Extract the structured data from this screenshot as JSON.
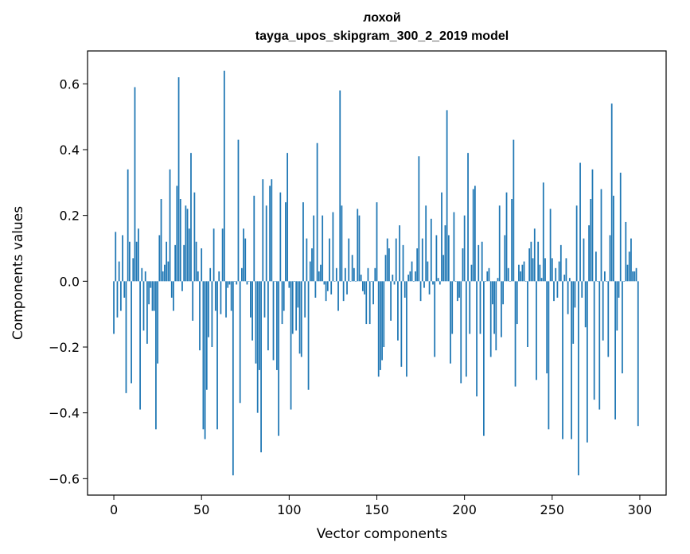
{
  "chart_data": {
    "type": "bar",
    "title": "лохой",
    "subtitle": "tayga_upos_skipgram_300_2_2019 model",
    "xlabel": "Vector components",
    "ylabel": "Components values",
    "xlim": [
      -15,
      315
    ],
    "ylim": [
      -0.65,
      0.7
    ],
    "xticks": [
      0,
      50,
      100,
      150,
      200,
      250,
      300
    ],
    "xtick_labels": [
      "0",
      "50",
      "100",
      "150",
      "200",
      "250",
      "300"
    ],
    "yticks": [
      -0.6,
      -0.4,
      -0.2,
      0.0,
      0.2,
      0.4,
      0.6
    ],
    "ytick_labels": [
      "−0.6",
      "−0.4",
      "−0.2",
      "0.0",
      "0.2",
      "0.4",
      "0.6"
    ],
    "grid": false,
    "bar_color": "#1f77b4",
    "x_start": 0,
    "values": [
      -0.16,
      0.15,
      -0.11,
      0.06,
      -0.09,
      0.14,
      -0.05,
      -0.34,
      0.34,
      0.12,
      -0.31,
      0.07,
      0.59,
      0.12,
      0.16,
      -0.39,
      0.04,
      -0.15,
      0.03,
      -0.19,
      -0.07,
      -0.02,
      -0.09,
      -0.09,
      -0.45,
      -0.25,
      0.14,
      0.25,
      0.03,
      0.05,
      0.12,
      0.06,
      0.34,
      -0.05,
      -0.09,
      0.11,
      0.29,
      0.62,
      0.25,
      -0.03,
      0.11,
      0.23,
      0.22,
      0.16,
      0.39,
      -0.12,
      0.27,
      0.12,
      0.03,
      -0.21,
      0.1,
      -0.45,
      -0.48,
      -0.33,
      -0.17,
      0.04,
      -0.2,
      0.16,
      -0.09,
      -0.45,
      0.03,
      -0.1,
      0.16,
      0.64,
      -0.11,
      -0.02,
      -0.01,
      -0.09,
      -0.59,
      0.0,
      -0.01,
      0.43,
      -0.37,
      0.04,
      0.16,
      0.13,
      -0.01,
      0.0,
      -0.11,
      -0.18,
      0.26,
      -0.25,
      -0.4,
      -0.27,
      -0.52,
      0.31,
      -0.11,
      0.23,
      -0.21,
      0.29,
      0.31,
      -0.24,
      0.0,
      -0.27,
      -0.47,
      0.27,
      -0.13,
      -0.09,
      0.24,
      0.39,
      -0.02,
      -0.39,
      -0.16,
      0.0,
      -0.15,
      -0.08,
      -0.22,
      -0.23,
      0.24,
      -0.11,
      0.13,
      -0.33,
      0.06,
      0.1,
      0.2,
      -0.05,
      0.42,
      0.03,
      0.05,
      0.2,
      -0.01,
      -0.06,
      -0.03,
      0.13,
      -0.04,
      0.21,
      0.0,
      0.04,
      -0.09,
      0.58,
      0.23,
      -0.06,
      0.04,
      -0.04,
      0.13,
      0.0,
      0.08,
      0.04,
      0.0,
      0.22,
      0.2,
      0.02,
      -0.03,
      -0.04,
      -0.13,
      0.04,
      -0.13,
      0.0,
      -0.07,
      0.04,
      0.24,
      -0.29,
      -0.27,
      -0.24,
      -0.2,
      0.08,
      0.13,
      0.1,
      -0.12,
      0.02,
      -0.01,
      0.13,
      -0.18,
      0.17,
      -0.26,
      0.11,
      -0.05,
      -0.29,
      0.02,
      0.03,
      0.06,
      0.0,
      0.03,
      0.1,
      0.38,
      -0.06,
      0.13,
      -0.02,
      0.23,
      0.06,
      -0.04,
      0.19,
      -0.01,
      -0.23,
      0.14,
      0.01,
      -0.01,
      0.27,
      0.08,
      0.17,
      0.52,
      0.14,
      -0.25,
      -0.16,
      0.21,
      0.0,
      -0.06,
      -0.05,
      -0.31,
      0.1,
      0.2,
      -0.29,
      0.39,
      -0.16,
      0.05,
      0.28,
      0.29,
      -0.35,
      0.11,
      -0.16,
      0.12,
      -0.47,
      0.0,
      0.03,
      0.04,
      -0.23,
      -0.07,
      -0.16,
      -0.21,
      0.01,
      0.23,
      -0.17,
      -0.07,
      0.14,
      0.27,
      0.04,
      0.0,
      0.25,
      0.43,
      -0.32,
      -0.13,
      0.05,
      0.03,
      0.05,
      0.06,
      0.0,
      -0.2,
      0.1,
      0.12,
      0.07,
      0.16,
      -0.3,
      0.12,
      0.05,
      0.01,
      0.3,
      0.07,
      -0.28,
      -0.45,
      0.22,
      0.07,
      -0.06,
      0.04,
      -0.05,
      0.06,
      0.11,
      -0.48,
      0.02,
      0.07,
      -0.1,
      0.01,
      -0.48,
      -0.19,
      -0.08,
      0.23,
      -0.59,
      0.36,
      -0.05,
      0.13,
      -0.14,
      -0.49,
      0.17,
      0.25,
      0.34,
      -0.36,
      0.09,
      0.0,
      -0.39,
      0.28,
      -0.18,
      0.03,
      0.0,
      -0.23,
      0.14,
      0.54,
      0.26,
      -0.42,
      -0.15,
      -0.05,
      0.33,
      -0.28,
      0.0,
      0.18,
      0.05,
      0.09,
      0.13,
      0.03,
      0.03,
      0.04,
      -0.44
    ]
  }
}
